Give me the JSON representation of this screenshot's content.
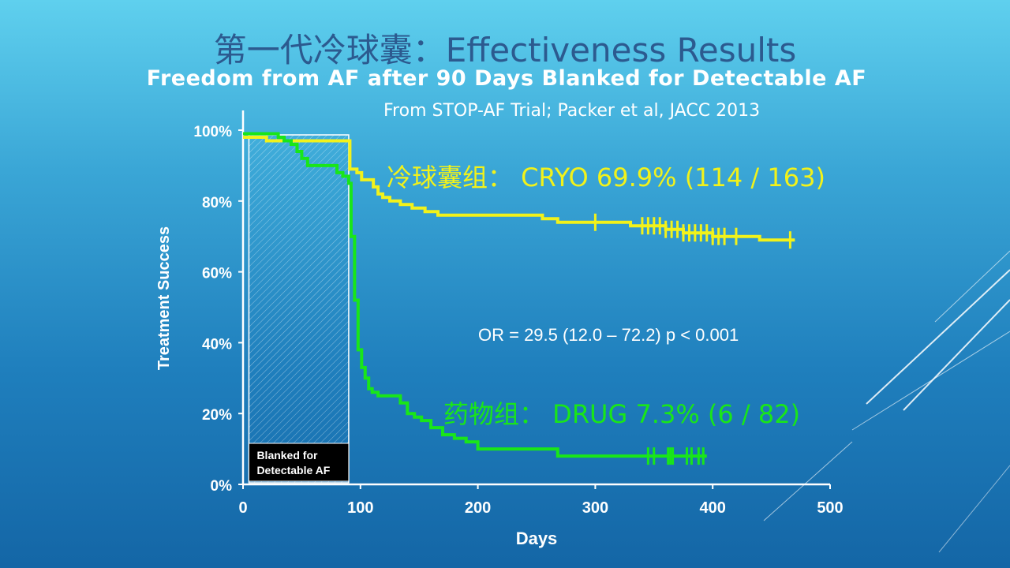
{
  "slide": {
    "title": "第一代冷球囊：Effectiveness Results",
    "subtitle": "Freedom from AF after 90 Days Blanked for Detectable AF",
    "source": "From STOP-AF Trial; Packer et al, JACC 2013"
  },
  "chart_data": {
    "type": "line",
    "ylabel": "Treatment Success",
    "xlabel": "Days",
    "xlim": [
      0,
      500
    ],
    "ylim": [
      0,
      100
    ],
    "x_ticks": [
      0,
      100,
      200,
      300,
      400,
      500
    ],
    "y_ticks": [
      0,
      20,
      40,
      60,
      80,
      100
    ],
    "y_tick_labels": [
      "0%",
      "20%",
      "40%",
      "60%",
      "80%",
      "100%"
    ],
    "blank_period": {
      "start": 5,
      "end": 90,
      "label_line1": "Blanked for",
      "label_line2": "Detectable AF"
    },
    "annotation": "OR  =  29.5 (12.0 – 72.2) p < 0.001",
    "series": [
      {
        "name": "冷球囊组： CRYO 69.9% (114 / 163)",
        "color": "#f2f21a",
        "points": [
          [
            0,
            98
          ],
          [
            20,
            97
          ],
          [
            88,
            97
          ],
          [
            91,
            89
          ],
          [
            97,
            88
          ],
          [
            101,
            86
          ],
          [
            107,
            86
          ],
          [
            111,
            84
          ],
          [
            115,
            82
          ],
          [
            119,
            81
          ],
          [
            125,
            80
          ],
          [
            134,
            79
          ],
          [
            144,
            78
          ],
          [
            155,
            77
          ],
          [
            166,
            76
          ],
          [
            190,
            76
          ],
          [
            255,
            75
          ],
          [
            268,
            74
          ],
          [
            310,
            74
          ],
          [
            330,
            73
          ],
          [
            360,
            72
          ],
          [
            375,
            71
          ],
          [
            400,
            70
          ],
          [
            440,
            69
          ],
          [
            470,
            69
          ]
        ],
        "censor_x": [
          300,
          340,
          345,
          350,
          355,
          360,
          365,
          370,
          375,
          380,
          385,
          390,
          395,
          400,
          405,
          410,
          420,
          466
        ]
      },
      {
        "name": "药物组： DRUG 7.3% (6 / 82)",
        "color": "#19e619",
        "points": [
          [
            0,
            99
          ],
          [
            30,
            98
          ],
          [
            35,
            97
          ],
          [
            41,
            96
          ],
          [
            46,
            94
          ],
          [
            50,
            92
          ],
          [
            55,
            90
          ],
          [
            75,
            90
          ],
          [
            80,
            88
          ],
          [
            85,
            87
          ],
          [
            90,
            85
          ],
          [
            92,
            70
          ],
          [
            95,
            52
          ],
          [
            98,
            38
          ],
          [
            101,
            33
          ],
          [
            104,
            30
          ],
          [
            107,
            27
          ],
          [
            110,
            26
          ],
          [
            115,
            25
          ],
          [
            130,
            25
          ],
          [
            134,
            23
          ],
          [
            140,
            20
          ],
          [
            146,
            19
          ],
          [
            152,
            18
          ],
          [
            160,
            16
          ],
          [
            170,
            14
          ],
          [
            180,
            13
          ],
          [
            190,
            12
          ],
          [
            200,
            10
          ],
          [
            245,
            10
          ],
          [
            268,
            8
          ],
          [
            300,
            8
          ],
          [
            395,
            8
          ]
        ],
        "censor_x": [
          345,
          350,
          362,
          364,
          366,
          378,
          382,
          388,
          392
        ]
      }
    ]
  }
}
